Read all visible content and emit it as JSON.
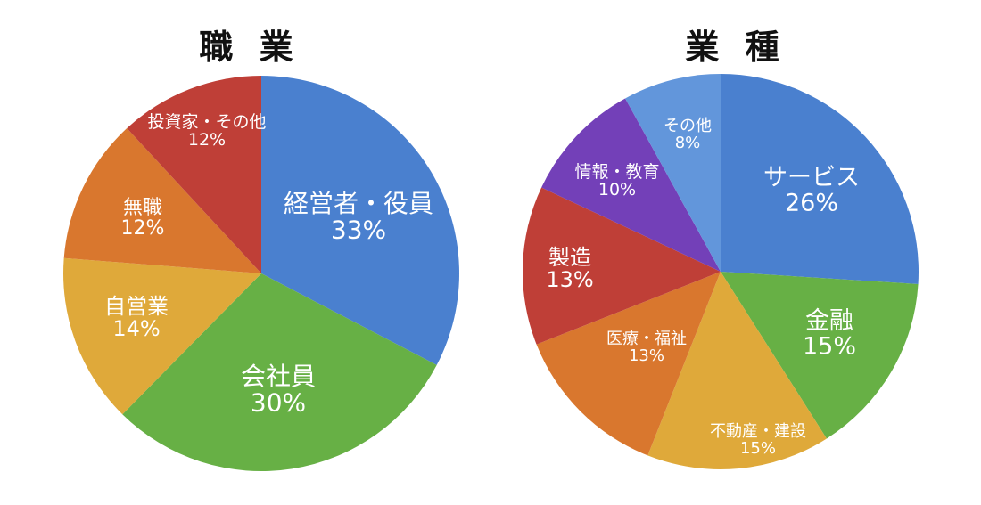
{
  "chart_data": [
    {
      "type": "pie",
      "title": "職 業",
      "start_angle": 0,
      "slices": [
        {
          "label": "経営者・役員",
          "value": 33,
          "value_label": "33%",
          "color": "#4a80cf"
        },
        {
          "label": "会社員",
          "value": 30,
          "value_label": "30%",
          "color": "#67b045"
        },
        {
          "label": "自営業",
          "value": 14,
          "value_label": "14%",
          "color": "#dfa93a"
        },
        {
          "label": "無職",
          "value": 12,
          "value_label": "12%",
          "color": "#d9772e"
        },
        {
          "label": "投資家・その他",
          "value": 12,
          "value_label": "12%",
          "color": "#bf3f37"
        }
      ]
    },
    {
      "type": "pie",
      "title": "業 種",
      "start_angle": 0,
      "slices": [
        {
          "label": "サービス",
          "value": 26,
          "value_label": "26%",
          "color": "#4a80cf"
        },
        {
          "label": "金融",
          "value": 15,
          "value_label": "15%",
          "color": "#67b045"
        },
        {
          "label": "不動産・建設",
          "value": 15,
          "value_label": "15%",
          "color": "#dfa93a"
        },
        {
          "label": "医療・福祉",
          "value": 13,
          "value_label": "13%",
          "color": "#d9772e"
        },
        {
          "label": "製造",
          "value": 13,
          "value_label": "13%",
          "color": "#bf3f37"
        },
        {
          "label": "情報・教育",
          "value": 10,
          "value_label": "10%",
          "color": "#7340b8"
        },
        {
          "label": "その他",
          "value": 8,
          "value_label": "8%",
          "color": "#6296db"
        }
      ]
    }
  ]
}
